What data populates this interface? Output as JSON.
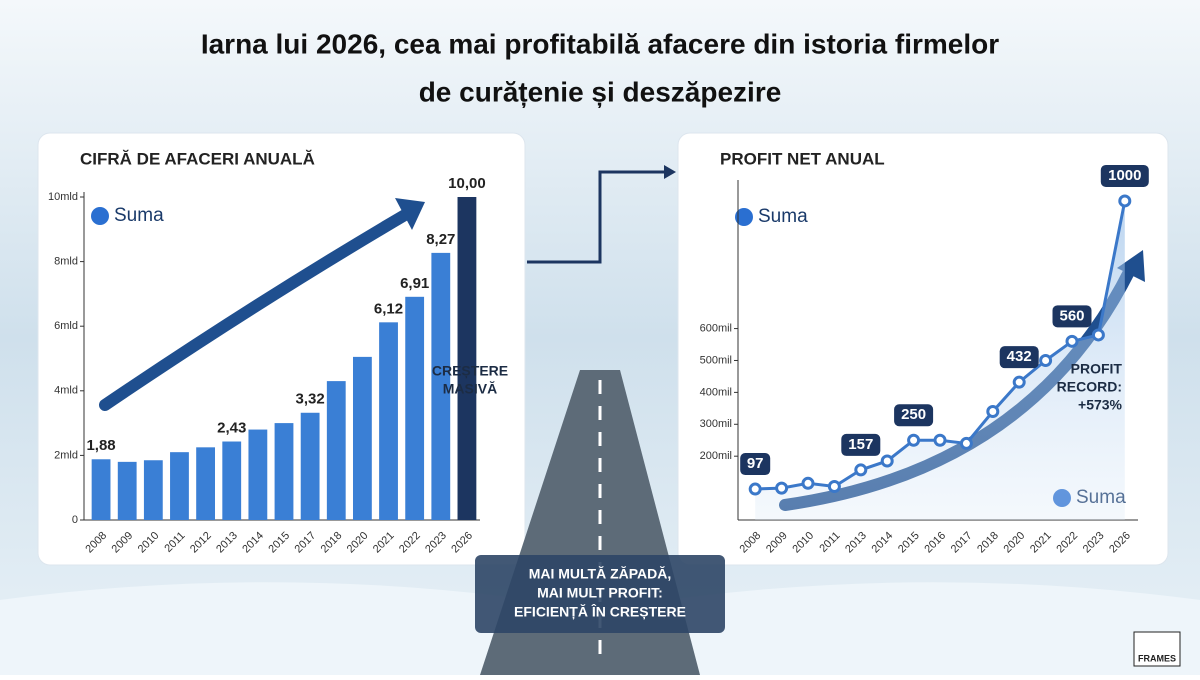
{
  "title": [
    "Iarna lui 2026, cea mai profitabilă afacere din istoria firmelor",
    "de curățenie și deszăpezire"
  ],
  "chart_data": [
    {
      "type": "bar",
      "title": "CIFRĂ DE AFACERI ANUALĂ",
      "logo": "Suma",
      "categories": [
        "2008",
        "2009",
        "2010",
        "2011",
        "2012",
        "2013",
        "2014",
        "2015",
        "2017",
        "2018",
        "2020",
        "2021",
        "2022",
        "2023",
        "2026"
      ],
      "values": [
        1.88,
        1.8,
        1.85,
        2.1,
        2.25,
        2.43,
        2.8,
        3.0,
        3.32,
        4.3,
        5.05,
        6.12,
        6.91,
        8.27,
        10.0
      ],
      "value_labels": [
        "1,88",
        null,
        null,
        null,
        null,
        "2,43",
        null,
        null,
        "3,32",
        null,
        null,
        "6,12",
        "6,91",
        "8,27",
        "10,00"
      ],
      "colors": [
        "#3a7fd5",
        "#3a7fd5",
        "#3a7fd5",
        "#3a7fd5",
        "#3a7fd5",
        "#3a7fd5",
        "#3a7fd5",
        "#3a7fd5",
        "#3a7fd5",
        "#3a7fd5",
        "#3a7fd5",
        "#3a7fd5",
        "#3a7fd5",
        "#3a7fd5",
        "#1c3560"
      ],
      "ylim": [
        0,
        10
      ],
      "yticks": [
        0,
        {
          "value": 2,
          "label": "2mld"
        },
        {
          "value": 4,
          "label": "4mld"
        },
        {
          "value": 6,
          "label": "6mld"
        },
        {
          "value": 8,
          "label": "8mld"
        },
        {
          "value": 10,
          "label": "10mld"
        }
      ],
      "annotation": [
        "CREȘTERE",
        "MASIVĂ"
      ]
    },
    {
      "type": "line",
      "title": "PROFIT NET ANUAL",
      "logo": "Suma",
      "categories": [
        "2008",
        "2009",
        "2010",
        "2011",
        "2013",
        "2014",
        "2015",
        "2016",
        "2017",
        "2018",
        "2020",
        "2021",
        "2022",
        "2023",
        "2026"
      ],
      "values": [
        97,
        100,
        115,
        105,
        157,
        185,
        250,
        250,
        240,
        340,
        432,
        500,
        560,
        580,
        1000
      ],
      "value_labels": [
        "97",
        null,
        null,
        null,
        "157",
        null,
        "250",
        null,
        null,
        null,
        "432",
        null,
        "560",
        null,
        "1000"
      ],
      "color": "#3b78c9",
      "ylim": [
        0,
        1050
      ],
      "yticks": [
        {
          "value": 200,
          "label": "200mil"
        },
        {
          "value": 300,
          "label": "300mil"
        },
        {
          "value": 400,
          "label": "400mil"
        },
        {
          "value": 500,
          "label": "500mil"
        },
        {
          "value": 600,
          "label": "600mil"
        }
      ],
      "annotation": [
        "PROFIT",
        "RECORD:",
        "+573%"
      ]
    }
  ],
  "road_caption": [
    "MAI MULTĂ ZĂPADĂ,",
    "MAI MULT PROFIT:",
    "EFICIENȚĂ ÎN CREȘTERE"
  ],
  "watermark": "FRAMES"
}
